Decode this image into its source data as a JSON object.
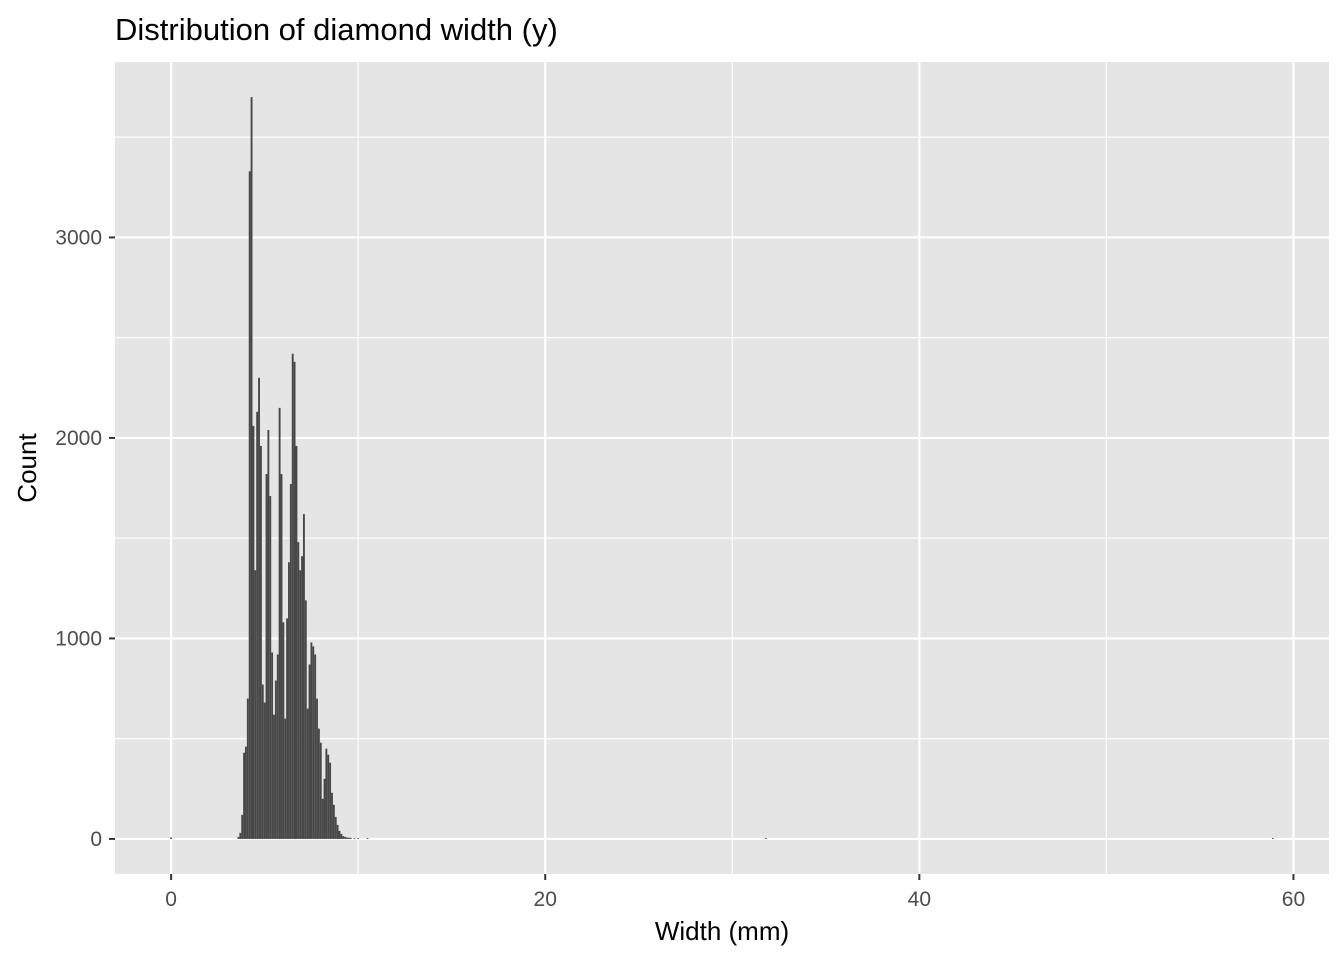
{
  "chart_data": {
    "type": "bar",
    "title": "Distribution of diamond width (y)",
    "xlabel": "Width (mm)",
    "ylabel": "Count",
    "xlim": [
      -3,
      61.9
    ],
    "ylim": [
      -175,
      3875
    ],
    "x_ticks": [
      0,
      20,
      40,
      60
    ],
    "x_tick_labels": [
      "0",
      "20",
      "40",
      "60"
    ],
    "y_ticks": [
      0,
      1000,
      2000,
      3000
    ],
    "y_tick_labels": [
      "0",
      "1000",
      "2000",
      "3000"
    ],
    "grid": true,
    "legend": "none",
    "bin_width": 0.1,
    "x": [
      0.0,
      3.6,
      3.7,
      3.8,
      3.9,
      4.0,
      4.1,
      4.2,
      4.3,
      4.4,
      4.5,
      4.6,
      4.7,
      4.8,
      4.9,
      5.0,
      5.1,
      5.2,
      5.3,
      5.4,
      5.5,
      5.6,
      5.7,
      5.8,
      5.9,
      6.0,
      6.1,
      6.2,
      6.3,
      6.4,
      6.5,
      6.6,
      6.7,
      6.8,
      6.9,
      7.0,
      7.1,
      7.2,
      7.3,
      7.4,
      7.5,
      7.6,
      7.7,
      7.8,
      7.9,
      8.0,
      8.1,
      8.2,
      8.3,
      8.4,
      8.5,
      8.6,
      8.7,
      8.8,
      8.9,
      9.0,
      9.1,
      9.2,
      9.3,
      9.4,
      9.5,
      9.6,
      9.8,
      10.0,
      10.5,
      31.8,
      58.9
    ],
    "values": [
      7,
      10,
      30,
      120,
      430,
      460,
      700,
      3330,
      3700,
      2060,
      1340,
      2130,
      2300,
      1960,
      770,
      680,
      1820,
      2040,
      1710,
      930,
      620,
      790,
      920,
      2150,
      1820,
      1080,
      600,
      1100,
      1380,
      1770,
      2420,
      2380,
      1960,
      1480,
      1340,
      1410,
      1620,
      1190,
      650,
      870,
      980,
      960,
      920,
      700,
      550,
      480,
      200,
      300,
      450,
      420,
      380,
      230,
      170,
      110,
      70,
      40,
      25,
      14,
      10,
      7,
      6,
      5,
      3,
      2,
      2,
      1,
      1
    ],
    "colors": {
      "panel": "#e5e5e5",
      "grid_major": "#ffffff",
      "bar": "#474747",
      "tick": "#333333"
    }
  }
}
